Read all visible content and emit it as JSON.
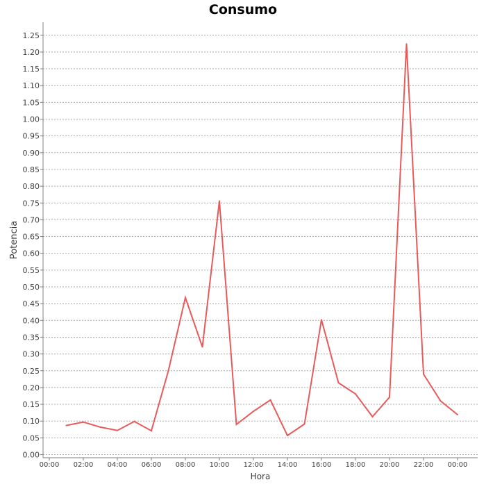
{
  "chart_data": {
    "type": "line",
    "title": "Consumo",
    "xlabel": "Hora",
    "ylabel": "Potencia",
    "x_ticks": [
      "00:00",
      "02:00",
      "04:00",
      "06:00",
      "08:00",
      "10:00",
      "12:00",
      "14:00",
      "16:00",
      "18:00",
      "20:00",
      "22:00",
      "00:00"
    ],
    "y_ticks": [
      "0.00",
      "0.05",
      "0.10",
      "0.15",
      "0.20",
      "0.25",
      "0.30",
      "0.35",
      "0.40",
      "0.45",
      "0.50",
      "0.55",
      "0.60",
      "0.65",
      "0.70",
      "0.75",
      "0.80",
      "0.85",
      "0.90",
      "0.95",
      "1.00",
      "1.05",
      "1.10",
      "1.15",
      "1.20",
      "1.25"
    ],
    "ylim": [
      0,
      1.27
    ],
    "grid": true,
    "series": [
      {
        "color": "#e8595a",
        "points": [
          [
            "01:00",
            0.087
          ],
          [
            "02:00",
            0.097
          ],
          [
            "03:00",
            0.082
          ],
          [
            "04:00",
            0.072
          ],
          [
            "05:00",
            0.099
          ],
          [
            "06:00",
            0.071
          ],
          [
            "07:00",
            0.25
          ],
          [
            "08:00",
            0.468
          ],
          [
            "09:00",
            0.321
          ],
          [
            "10:00",
            0.756
          ],
          [
            "11:00",
            0.09
          ],
          [
            "12:00",
            0.129
          ],
          [
            "13:00",
            0.163
          ],
          [
            "14:00",
            0.057
          ],
          [
            "15:00",
            0.091
          ],
          [
            "16:00",
            0.402
          ],
          [
            "17:00",
            0.214
          ],
          [
            "18:00",
            0.181
          ],
          [
            "19:00",
            0.113
          ],
          [
            "20:00",
            0.171
          ],
          [
            "21:00",
            1.224
          ],
          [
            "22:00",
            0.24
          ],
          [
            "23:00",
            0.16
          ],
          [
            "24:00",
            0.119
          ]
        ]
      }
    ]
  }
}
